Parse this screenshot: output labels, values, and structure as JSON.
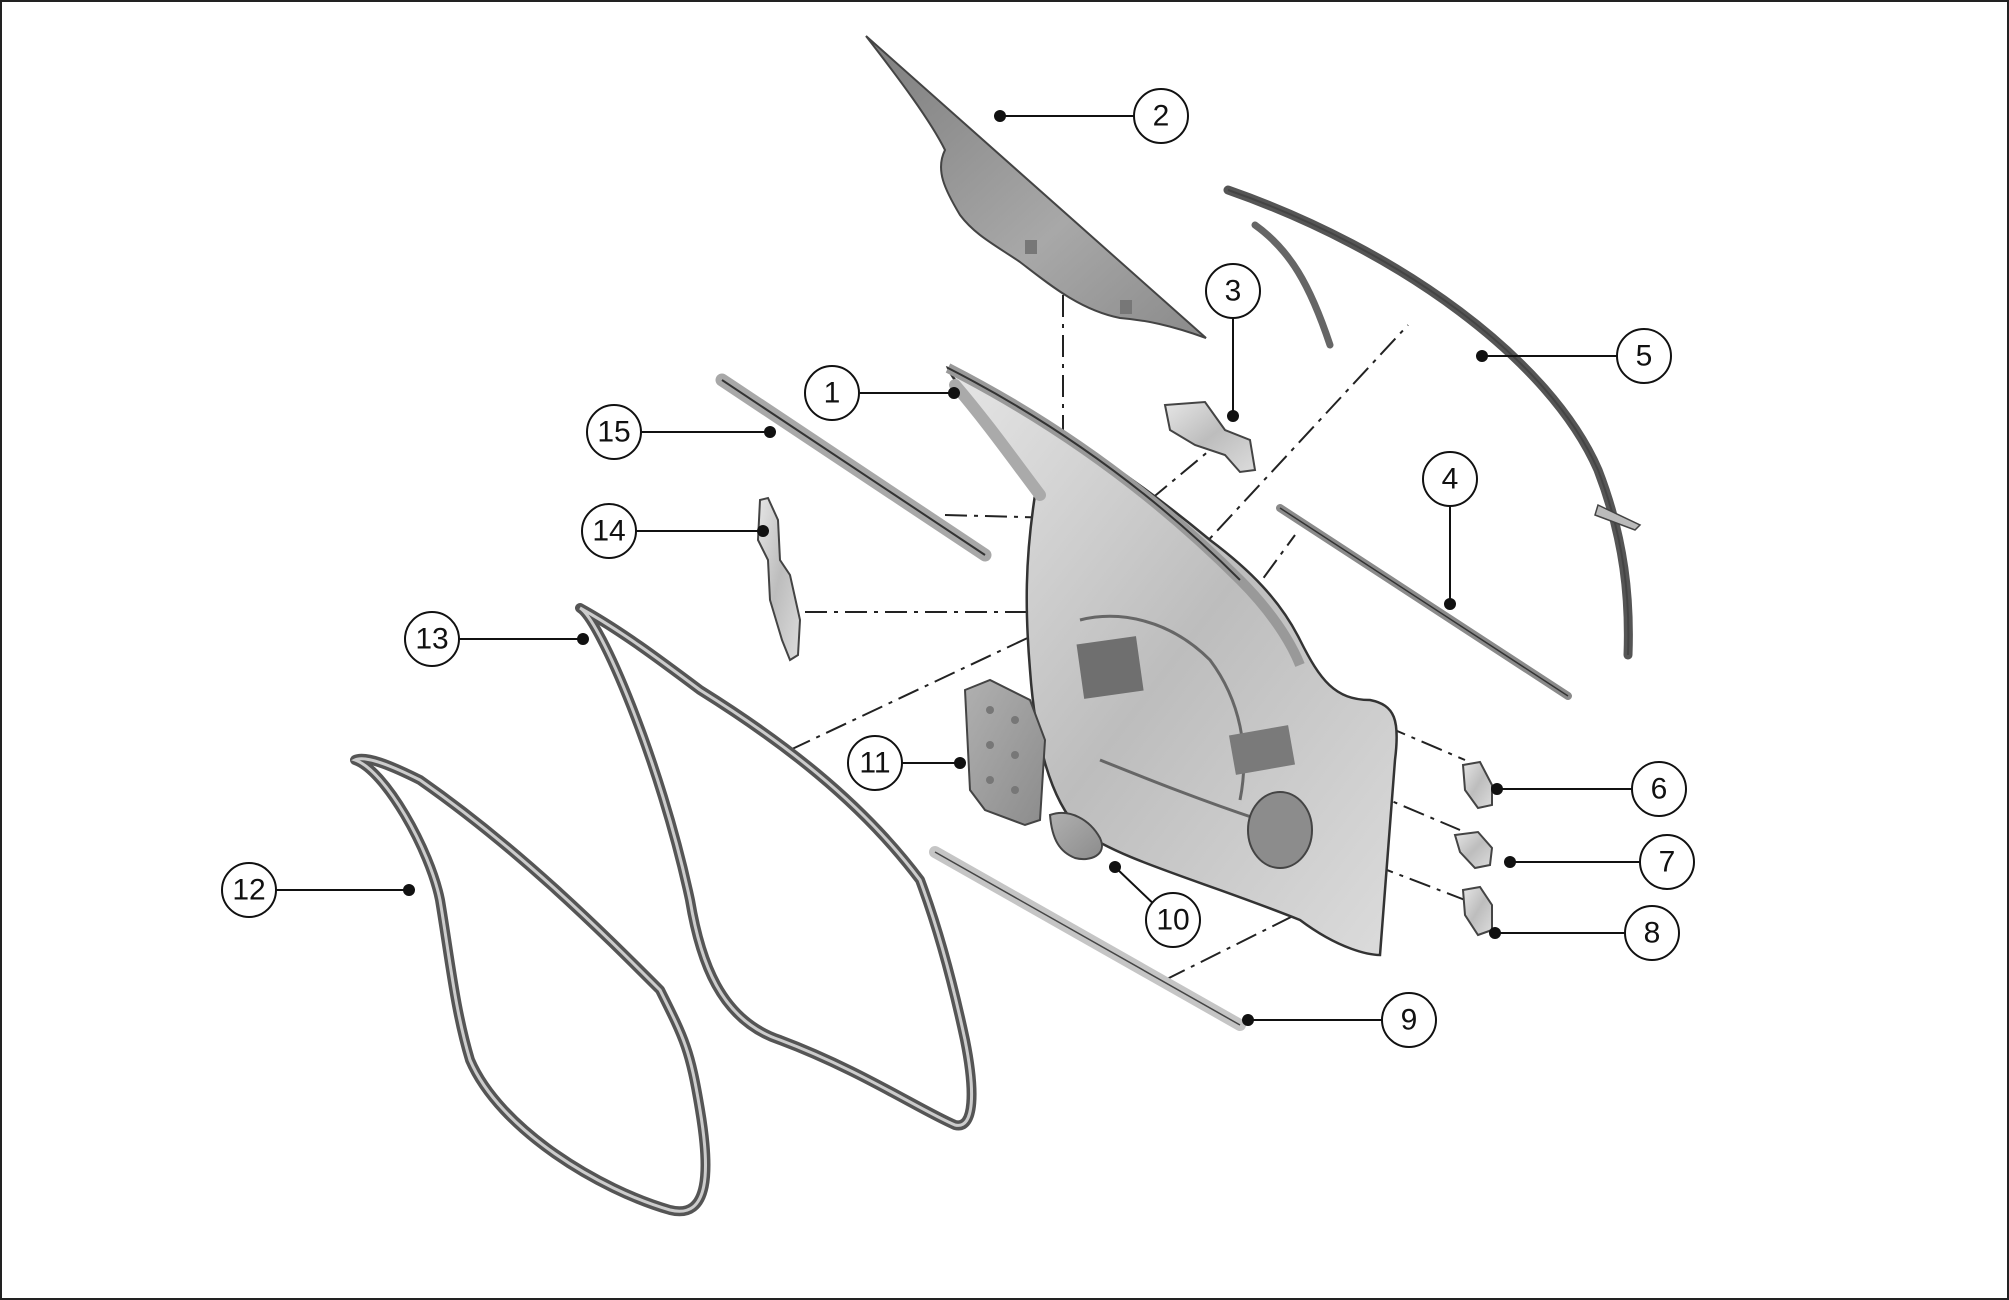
{
  "diagram": {
    "frame_color": "#222222",
    "part_color": "#c8c8c8",
    "glass_color": "#9a9a9a",
    "callouts": [
      "1",
      "2",
      "3",
      "4",
      "5",
      "6",
      "7",
      "8",
      "9",
      "10",
      "11",
      "12",
      "13",
      "14",
      "15"
    ]
  }
}
